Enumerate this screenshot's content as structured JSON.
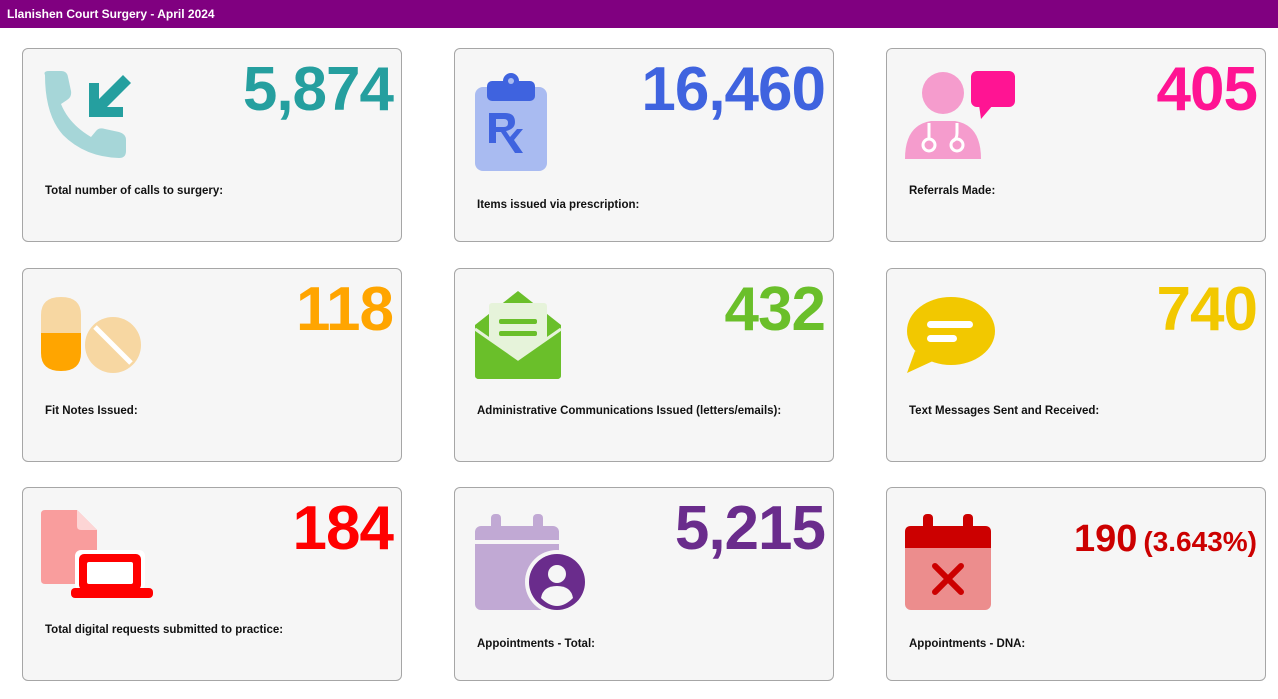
{
  "header": {
    "title": "Llanishen Court Surgery - April 2024"
  },
  "cards": [
    {
      "value": "5,874",
      "label": "Total number of calls to surgery:",
      "color": "#259f9f",
      "icon": "incoming-call-icon"
    },
    {
      "value": "16,460",
      "label": "Items issued via prescription:",
      "color": "#3f63df",
      "icon": "prescription-clipboard-icon"
    },
    {
      "value": "405",
      "label": "Referrals Made:",
      "color": "#ff1493",
      "icon": "doctor-chat-icon"
    },
    {
      "value": "118",
      "label": "Fit Notes Issued:",
      "color": "#ffa500",
      "icon": "pills-icon"
    },
    {
      "value": "432",
      "label": "Administrative Communications Issued (letters/emails):",
      "color": "#6abf2a",
      "icon": "open-envelope-icon"
    },
    {
      "value": "740",
      "label": "Text Messages Sent and Received:",
      "color": "#f2c800",
      "icon": "chat-bubble-icon"
    },
    {
      "value": "184",
      "label": "Total digital requests submitted to practice:",
      "color": "#ff0000",
      "icon": "document-laptop-icon"
    },
    {
      "value": "5,215",
      "label": "Appointments - Total:",
      "color": "#6a2c8c",
      "icon": "calendar-user-icon"
    },
    {
      "value": "190",
      "value_pct": "(3.643%)",
      "label": "Appointments - DNA:",
      "color": "#cc0000",
      "icon": "calendar-cancel-icon"
    }
  ]
}
